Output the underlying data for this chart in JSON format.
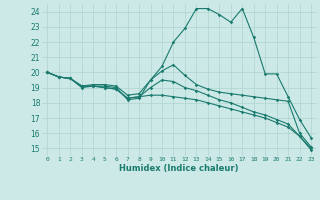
{
  "xlabel": "Humidex (Indice chaleur)",
  "ylabel": "",
  "background_color": "#cce9e7",
  "grid_color": "#aed4d0",
  "line_color": "#1a7a6e",
  "xlim": [
    -0.5,
    23.5
  ],
  "ylim": [
    14.5,
    24.5
  ],
  "yticks": [
    15,
    16,
    17,
    18,
    19,
    20,
    21,
    22,
    23,
    24
  ],
  "xticks": [
    0,
    1,
    2,
    3,
    4,
    5,
    6,
    7,
    8,
    9,
    10,
    11,
    12,
    13,
    14,
    15,
    16,
    17,
    18,
    19,
    20,
    21,
    22,
    23
  ],
  "series": [
    [
      20.0,
      19.7,
      19.6,
      19.0,
      19.1,
      19.1,
      19.0,
      18.2,
      18.3,
      19.5,
      20.4,
      22.0,
      22.9,
      24.2,
      24.2,
      23.8,
      23.3,
      24.2,
      22.3,
      19.9,
      19.9,
      18.4,
      16.9,
      15.7
    ],
    [
      20.0,
      19.7,
      19.6,
      19.1,
      19.2,
      19.2,
      19.1,
      18.5,
      18.6,
      19.5,
      20.1,
      20.5,
      19.8,
      19.2,
      18.9,
      18.7,
      18.6,
      18.5,
      18.4,
      18.3,
      18.2,
      18.1,
      16.0,
      15.1
    ],
    [
      20.0,
      19.7,
      19.6,
      19.1,
      19.1,
      19.0,
      18.9,
      18.3,
      18.4,
      19.0,
      19.5,
      19.4,
      19.0,
      18.8,
      18.5,
      18.2,
      18.0,
      17.7,
      17.4,
      17.2,
      16.9,
      16.6,
      15.8,
      15.0
    ],
    [
      20.0,
      19.7,
      19.6,
      19.1,
      19.1,
      19.0,
      18.9,
      18.3,
      18.4,
      18.5,
      18.5,
      18.4,
      18.3,
      18.2,
      18.0,
      17.8,
      17.6,
      17.4,
      17.2,
      17.0,
      16.7,
      16.4,
      15.8,
      14.9
    ]
  ]
}
